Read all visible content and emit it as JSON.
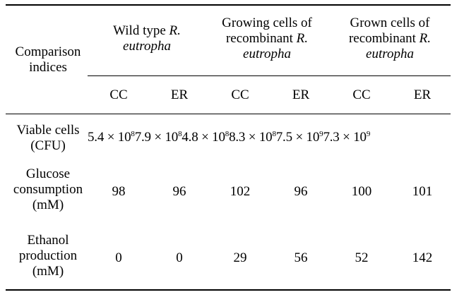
{
  "header": {
    "index_label": [
      "Comparison",
      "indices"
    ],
    "groups": [
      {
        "line1": "Wild type ",
        "line1_italic": "R.",
        "line2": "",
        "line2_italic": "eutropha"
      },
      {
        "line1": "Growing cells of",
        "line1_italic": "",
        "line2": "recombinant ",
        "line2_italic": "R.",
        "line3_italic": "eutropha"
      },
      {
        "line1": "Grown cells of",
        "line1_italic": "",
        "line2": "recombinant ",
        "line2_italic": "R.",
        "line3_italic": "eutropha"
      }
    ],
    "subcols": [
      "CC",
      "ER",
      "CC",
      "ER",
      "CC",
      "ER"
    ]
  },
  "rows": [
    {
      "label": [
        "Viable cells",
        "(CFU)"
      ],
      "values": [
        {
          "mant": "5.4 × 10",
          "exp": "8"
        },
        {
          "mant": "7.9 × 10",
          "exp": "8"
        },
        {
          "mant": "4.8 × 10",
          "exp": "8"
        },
        {
          "mant": "8.3 × 10",
          "exp": "8"
        },
        {
          "mant": "7.5 × 10",
          "exp": "9"
        },
        {
          "mant": "7.3 × 10",
          "exp": "9"
        }
      ]
    },
    {
      "label": [
        "Glucose",
        "consumption",
        "(mM)"
      ],
      "values": [
        "98",
        "96",
        "102",
        "96",
        "100",
        "101"
      ]
    },
    {
      "label": [
        "Ethanol",
        "production",
        "(mM)"
      ],
      "values": [
        "0",
        "0",
        "29",
        "56",
        "52",
        "142"
      ]
    }
  ]
}
